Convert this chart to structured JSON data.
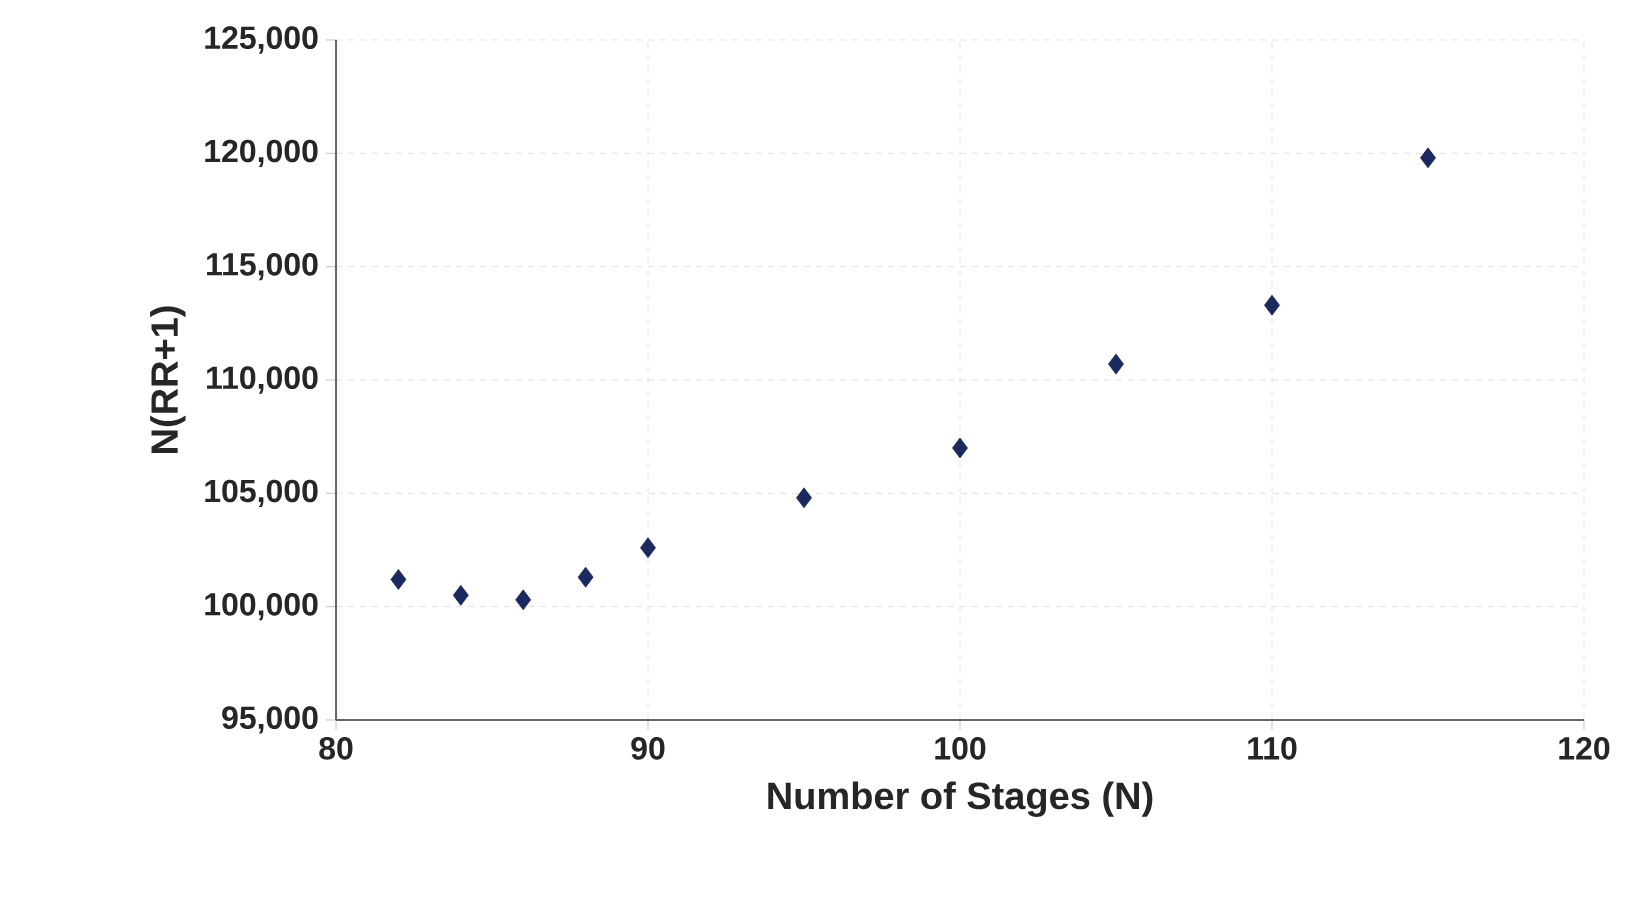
{
  "chart_data": {
    "type": "scatter",
    "xlabel": "Number of Stages (N)",
    "ylabel": "N(RR+1)",
    "x": [
      82,
      84,
      86,
      88,
      90,
      95,
      100,
      105,
      110,
      115
    ],
    "values": [
      101200,
      100500,
      100300,
      101300,
      102600,
      104800,
      107000,
      110700,
      113300,
      119800
    ],
    "color": "#1a2a5e",
    "marker": "diamond",
    "grid": true,
    "xlim": [
      80,
      120
    ],
    "xticks": [
      80,
      90,
      100,
      110,
      120
    ],
    "ylim": [
      95000,
      125000
    ],
    "yticks": [
      {
        "value": 95000,
        "label": "95,000"
      },
      {
        "value": 100000,
        "label": "100,000"
      },
      {
        "value": 105000,
        "label": "105,000"
      },
      {
        "value": 110000,
        "label": "110,000"
      },
      {
        "value": 115000,
        "label": "115,000"
      },
      {
        "value": 120000,
        "label": "120,000"
      },
      {
        "value": 125000,
        "label": "125,000"
      }
    ]
  }
}
